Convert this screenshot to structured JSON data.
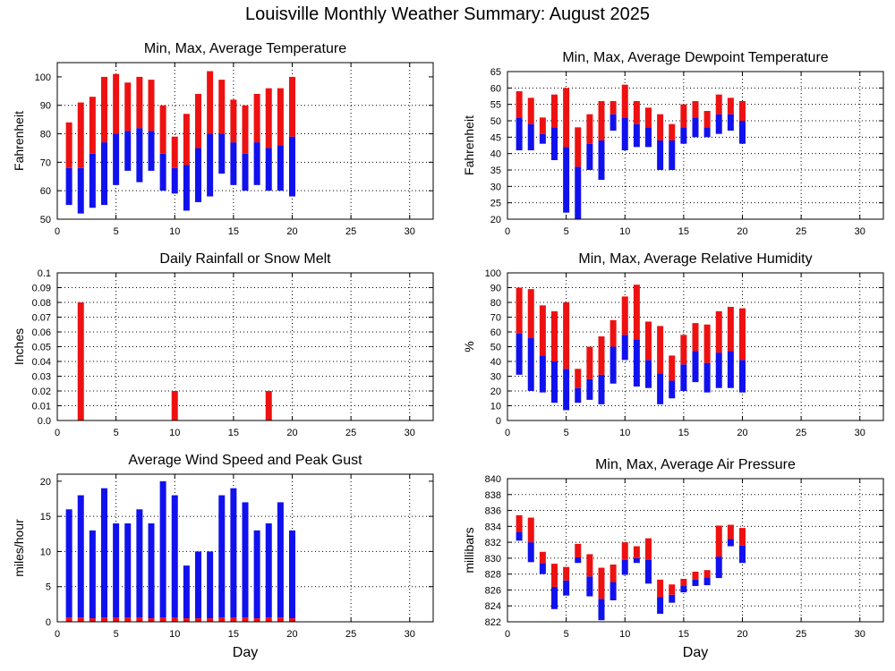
{
  "title": "Louisville Monthly Weather Summary: August 2025",
  "colors": {
    "max_segment": "#ee1111",
    "min_segment": "#1111ee",
    "gust_segment": "#1111ee",
    "avg_wind_segment": "#ee1111",
    "rain_bar": "#ee1111"
  },
  "chart_data": [
    {
      "id": "temp",
      "type": "bar",
      "subtype": "floating-range",
      "title": "Min, Max, Average Temperature",
      "xlabel": "",
      "ylabel": "Fahrenheit",
      "xlim": [
        0,
        32
      ],
      "ylim": [
        50,
        105
      ],
      "xticks": [
        0,
        5,
        10,
        15,
        20,
        25,
        30
      ],
      "yticks": [
        50,
        60,
        70,
        80,
        90,
        100
      ],
      "grid": true,
      "x": [
        1,
        2,
        3,
        4,
        5,
        6,
        7,
        8,
        9,
        10,
        11,
        12,
        13,
        14,
        15,
        16,
        17,
        18,
        19,
        20
      ],
      "min": [
        55,
        52,
        54,
        55,
        62,
        67,
        63,
        67,
        60,
        59,
        53,
        56,
        58,
        66,
        62,
        60,
        62,
        60,
        60,
        58
      ],
      "avg": [
        68,
        68,
        73,
        77,
        80,
        81,
        82,
        81,
        73,
        68,
        69,
        75,
        80,
        80,
        77,
        73,
        77,
        75,
        76,
        79
      ],
      "max": [
        84,
        91,
        93,
        100,
        101,
        98,
        100,
        99,
        90,
        79,
        87,
        94,
        102,
        99,
        92,
        90,
        94,
        96,
        96,
        100
      ]
    },
    {
      "id": "dew",
      "type": "bar",
      "subtype": "floating-range",
      "title": "Min, Max, Average Dewpoint Temperature",
      "xlabel": "",
      "ylabel": "Fahrenheit",
      "xlim": [
        0,
        32
      ],
      "ylim": [
        20,
        65
      ],
      "xticks": [
        0,
        5,
        10,
        15,
        20,
        25,
        30
      ],
      "yticks": [
        20,
        25,
        30,
        35,
        40,
        45,
        50,
        55,
        60,
        65
      ],
      "grid": true,
      "x": [
        1,
        2,
        3,
        4,
        5,
        6,
        7,
        8,
        9,
        10,
        11,
        12,
        13,
        14,
        15,
        16,
        17,
        18,
        19,
        20
      ],
      "min": [
        41,
        41,
        43,
        38,
        22,
        20,
        35,
        32,
        47,
        41,
        42,
        42,
        35,
        35,
        43,
        45,
        45,
        46,
        47,
        43
      ],
      "avg": [
        51,
        49,
        46,
        48,
        42,
        36,
        43,
        44,
        52,
        51,
        49,
        48,
        44,
        44,
        48,
        51,
        48,
        52,
        52,
        50
      ],
      "max": [
        59,
        57,
        51,
        58,
        60,
        48,
        52,
        56,
        56,
        61,
        56,
        54,
        52,
        49,
        55,
        56,
        53,
        58,
        57,
        56
      ]
    },
    {
      "id": "rain",
      "type": "bar",
      "title": "Daily Rainfall or Snow Melt",
      "xlabel": "",
      "ylabel": "Inches",
      "xlim": [
        0,
        32
      ],
      "ylim": [
        0,
        0.1
      ],
      "xticks": [
        0,
        5,
        10,
        15,
        20,
        25,
        30
      ],
      "yticks": [
        0,
        0.01,
        0.02,
        0.03,
        0.04,
        0.05,
        0.06,
        0.07,
        0.08,
        0.09,
        0.1
      ],
      "ytick_labels": [
        "0.0",
        "0.01",
        "0.02",
        "0.03",
        "0.04",
        "0.05",
        "0.06",
        "0.07",
        "0.08",
        "0.09",
        "0.1"
      ],
      "grid": true,
      "x": [
        2,
        10,
        18
      ],
      "values": [
        0.08,
        0.02,
        0.02
      ]
    },
    {
      "id": "rh",
      "type": "bar",
      "subtype": "floating-range",
      "title": "Min, Max, Average Relative Humidity",
      "xlabel": "",
      "ylabel": "%",
      "xlim": [
        0,
        32
      ],
      "ylim": [
        0,
        100
      ],
      "xticks": [
        0,
        5,
        10,
        15,
        20,
        25,
        30
      ],
      "yticks": [
        0,
        10,
        20,
        30,
        40,
        50,
        60,
        70,
        80,
        90,
        100
      ],
      "grid": true,
      "x": [
        1,
        2,
        3,
        4,
        5,
        6,
        7,
        8,
        9,
        10,
        11,
        12,
        13,
        14,
        15,
        16,
        17,
        18,
        19,
        20
      ],
      "min": [
        31,
        20,
        19,
        12,
        7,
        12,
        14,
        11,
        25,
        41,
        23,
        22,
        11,
        15,
        20,
        26,
        19,
        22,
        22,
        19
      ],
      "avg": [
        59,
        56,
        44,
        40,
        35,
        22,
        28,
        31,
        50,
        58,
        55,
        41,
        32,
        27,
        38,
        47,
        39,
        46,
        47,
        41
      ],
      "max": [
        90,
        89,
        78,
        74,
        80,
        35,
        50,
        57,
        68,
        84,
        92,
        67,
        64,
        44,
        58,
        66,
        65,
        74,
        77,
        76
      ]
    },
    {
      "id": "wind",
      "type": "bar",
      "subtype": "stacked",
      "title": "Average Wind Speed and Peak Gust",
      "xlabel": "Day",
      "ylabel": "miles/hour",
      "xlim": [
        0,
        32
      ],
      "ylim": [
        0,
        21
      ],
      "xticks": [
        0,
        5,
        10,
        15,
        20,
        25,
        30
      ],
      "yticks": [
        0,
        5,
        10,
        15,
        20
      ],
      "grid": true,
      "x": [
        1,
        2,
        3,
        4,
        5,
        6,
        7,
        8,
        9,
        10,
        11,
        12,
        13,
        14,
        15,
        16,
        17,
        18,
        19,
        20
      ],
      "avg_speed": [
        0.6,
        0.6,
        0.5,
        0.6,
        0.6,
        0.6,
        0.6,
        0.5,
        0.6,
        0.6,
        0.5,
        0.5,
        0.5,
        0.6,
        0.6,
        0.6,
        0.5,
        0.6,
        0.6,
        0.5
      ],
      "peak_gust": [
        16,
        18,
        13,
        19,
        14,
        14,
        16,
        14,
        20,
        18,
        8,
        10,
        10,
        18,
        19,
        17,
        13,
        14,
        17,
        13
      ]
    },
    {
      "id": "pres",
      "type": "bar",
      "subtype": "floating-range",
      "title": "Min, Max, Average Air Pressure",
      "xlabel": "Day",
      "ylabel": "millibars",
      "xlim": [
        0,
        32
      ],
      "ylim": [
        822,
        840
      ],
      "xticks": [
        0,
        5,
        10,
        15,
        20,
        25,
        30
      ],
      "yticks": [
        822,
        824,
        826,
        828,
        830,
        832,
        834,
        836,
        838,
        840
      ],
      "grid": true,
      "x": [
        1,
        2,
        3,
        4,
        5,
        6,
        7,
        8,
        9,
        10,
        11,
        12,
        13,
        14,
        15,
        16,
        17,
        18,
        19,
        20
      ],
      "min": [
        832.2,
        829.5,
        828.0,
        823.6,
        825.3,
        829.4,
        825.2,
        822.2,
        824.7,
        827.9,
        829.4,
        826.8,
        823.0,
        824.4,
        825.7,
        826.5,
        826.6,
        827.5,
        831.5,
        829.4
      ],
      "avg": [
        833.3,
        832.0,
        829.4,
        826.4,
        827.2,
        830.1,
        827.7,
        824.9,
        827.0,
        829.8,
        830.0,
        829.8,
        825.1,
        825.4,
        826.5,
        827.3,
        827.6,
        830.2,
        832.4,
        831.6
      ],
      "max": [
        835.4,
        835.1,
        830.8,
        829.3,
        828.9,
        831.8,
        830.5,
        828.8,
        829.2,
        832.0,
        831.5,
        832.5,
        827.3,
        826.7,
        827.4,
        828.3,
        828.5,
        834.1,
        834.2,
        833.8
      ]
    }
  ]
}
